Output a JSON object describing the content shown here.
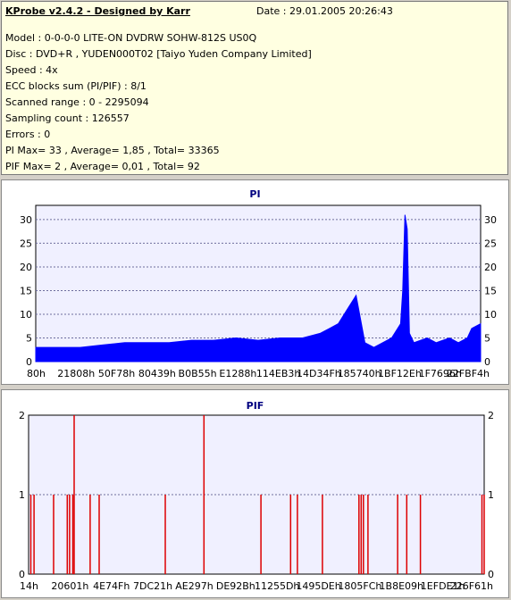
{
  "info": {
    "title": "KProbe v2.4.2 - Designed by Karr",
    "date": "Date : 29.01.2005 20:26:43",
    "lines": [
      "Model : 0-0-0-0 LITE-ON DVDRW SOHW-812S  US0Q",
      "Disc : DVD+R , YUDEN000T02 [Taiyo Yuden Company Limited]",
      "Speed : 4x",
      "ECC blocks sum (PI/PIF) : 8/1",
      "Scanned range : 0 - 2295094",
      "Sampling count : 126557",
      "Errors : 0",
      "PI Max= 33 , Average= 1,85 , Total= 33365",
      "PIF Max= 2 , Average= 0,01 , Total= 92"
    ]
  },
  "colors": {
    "pi": "#0000ff",
    "pif": "#dd0000",
    "plot_bg": "#f0f0ff",
    "grid": "#6e6e9e"
  },
  "chart_data": [
    {
      "type": "area",
      "title": "PI",
      "ylim": [
        0,
        33
      ],
      "yticks": [
        0,
        5,
        10,
        15,
        20,
        25,
        30
      ],
      "xtick_labels": [
        "80h",
        "21808h",
        "50F78h",
        "80439h",
        "B0B55h",
        "E1288h",
        "114EB3h",
        "14D34Fh",
        "185740h",
        "1BF12Eh",
        "1F7696h",
        "22FBF4h"
      ],
      "series": [
        {
          "x_fraction": [
            0,
            0.05,
            0.1,
            0.15,
            0.2,
            0.25,
            0.3,
            0.35,
            0.4,
            0.45,
            0.5,
            0.55,
            0.6,
            0.62,
            0.64,
            0.66,
            0.68,
            0.7,
            0.72,
            0.74,
            0.76,
            0.78,
            0.8,
            0.82,
            0.825,
            0.83,
            0.835,
            0.84,
            0.85,
            0.88,
            0.9,
            0.93,
            0.95,
            0.97,
            0.98,
            1.0
          ],
          "values": [
            3,
            3,
            3,
            3.5,
            4,
            4,
            4,
            4.5,
            4.5,
            5,
            4.5,
            5,
            5,
            5.5,
            6,
            7,
            8,
            11,
            14,
            4,
            3,
            4,
            5,
            8,
            15,
            31,
            28,
            6,
            4,
            5,
            4,
            5,
            4,
            5,
            7,
            8
          ]
        }
      ]
    },
    {
      "type": "bar",
      "title": "PIF",
      "ylim": [
        0,
        2
      ],
      "yticks": [
        0,
        1,
        2
      ],
      "xtick_labels": [
        "14h",
        "20601h",
        "4E74Fh",
        "7DC21h",
        "AE297h",
        "DE92Bh",
        "11255Dh",
        "1495DEh",
        "1805FCh",
        "1B8E09h",
        "1EFDE1h",
        "226F61h"
      ],
      "series": [
        {
          "x_fraction": [
            0.005,
            0.012,
            0.055,
            0.085,
            0.09,
            0.097,
            0.1,
            0.135,
            0.155,
            0.3,
            0.385,
            0.51,
            0.575,
            0.59,
            0.645,
            0.725,
            0.73,
            0.735,
            0.745,
            0.81,
            0.83,
            0.86,
            0.995,
            1.0
          ],
          "values": [
            1,
            1,
            1,
            1,
            1,
            1,
            2,
            1,
            1,
            1,
            2,
            1,
            1,
            1,
            1,
            1,
            1,
            1,
            1,
            1,
            1,
            1,
            1,
            1
          ]
        }
      ]
    }
  ]
}
